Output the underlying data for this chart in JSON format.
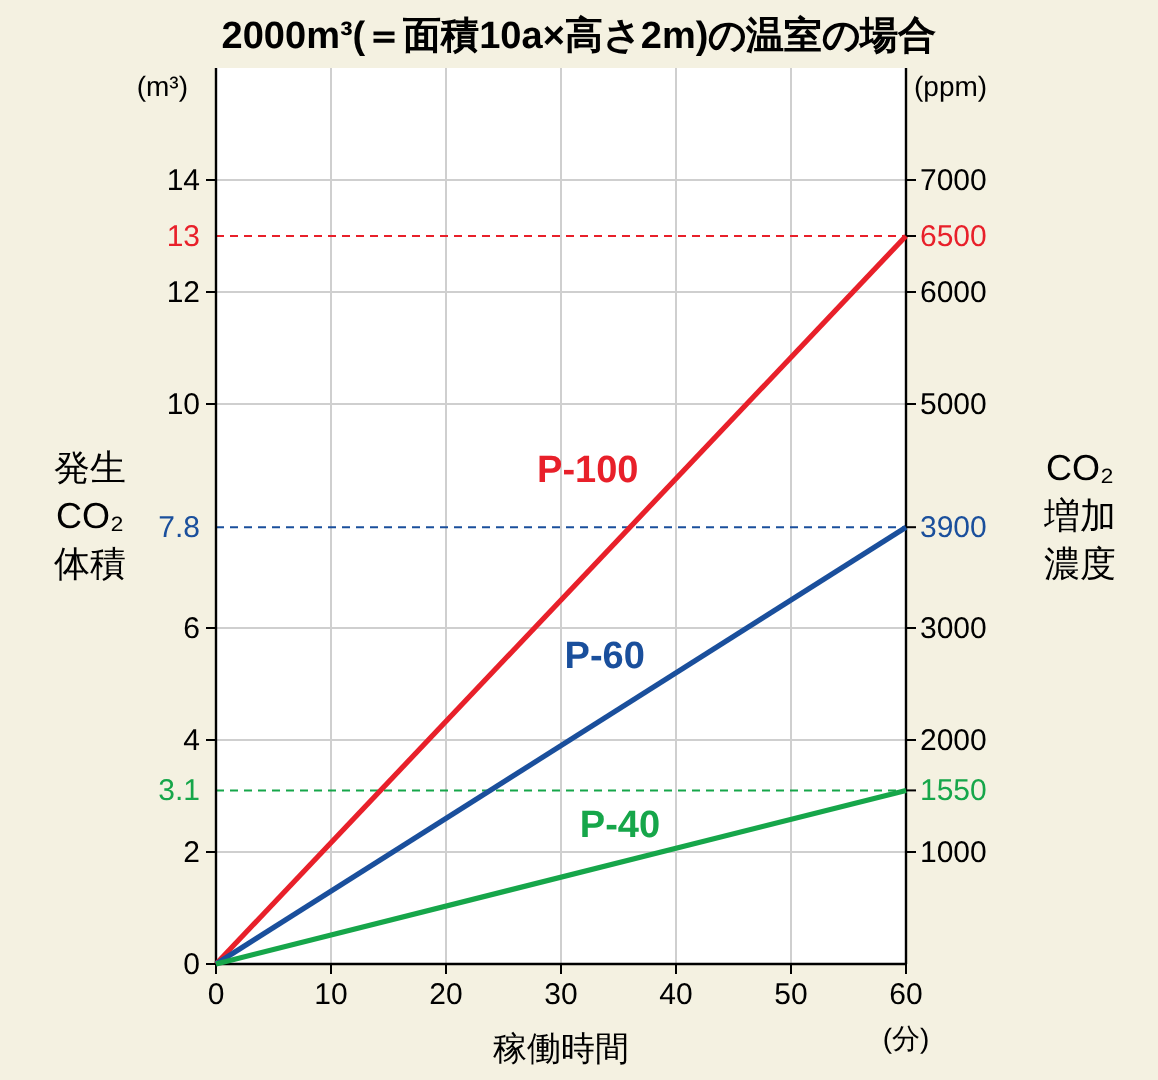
{
  "chart_data": {
    "type": "line",
    "title": "2000m³(＝面積10a×高さ2m)の温室の場合",
    "xlabel": "稼働時間",
    "ylabel": "発生CO₂体積",
    "y2label": "CO₂増加濃度",
    "xlim": [
      0,
      60
    ],
    "xticks": [
      0,
      10,
      20,
      30,
      40,
      50,
      60
    ],
    "x": [
      0,
      60
    ],
    "ylim": [
      0,
      16
    ],
    "yticks": [
      0,
      2,
      4,
      6,
      10,
      12,
      14
    ],
    "y2lim": [
      0,
      8000
    ],
    "y2ticks": [
      1000,
      1550,
      2000,
      3000,
      3900,
      5000,
      6000,
      6500,
      7000
    ],
    "grid": true,
    "marker": "none",
    "line_style": "solid",
    "series": [
      {
        "name": "P-100",
        "color": "#e8202a",
        "values": [
          0,
          13
        ]
      },
      {
        "name": "P-60",
        "color": "#1a4f9c",
        "values": [
          0,
          7.8
        ]
      },
      {
        "name": "P-40",
        "color": "#16a64a",
        "values": [
          0,
          3.1
        ]
      }
    ],
    "ref_lines": [
      {
        "axis": "y",
        "value": 13,
        "label": "13",
        "color": "#e8202a",
        "line_style": "dashed"
      },
      {
        "axis": "y",
        "value": 7.8,
        "label": "7.8",
        "color": "#1a4f9c",
        "line_style": "dashed"
      },
      {
        "axis": "y",
        "value": 3.1,
        "label": "3.1",
        "color": "#16a64a",
        "line_style": "dashed"
      }
    ],
    "annotations": [
      "(m³)",
      "(ppm)",
      "(分)"
    ]
  }
}
